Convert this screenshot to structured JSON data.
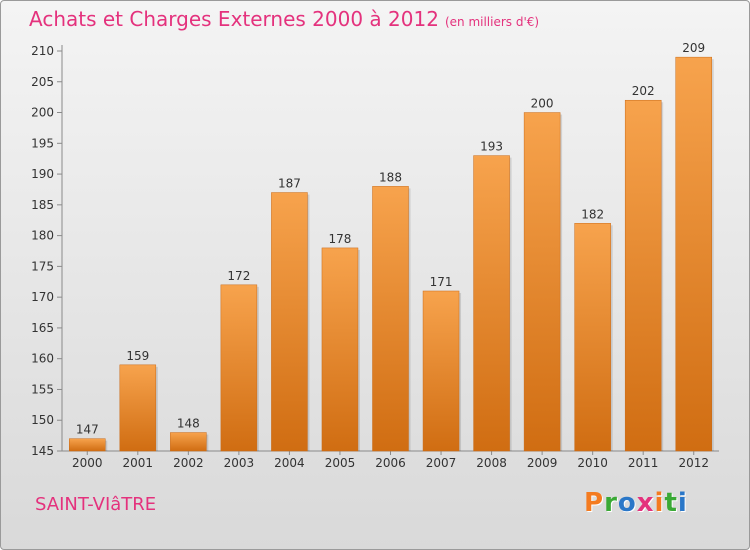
{
  "header": {
    "title": "Achats et Charges Externes 2000 à 2012",
    "unit": "(en milliers d'€)"
  },
  "footer": {
    "commune": "SAINT-VIâTRE",
    "logo_letters": [
      "P",
      "r",
      "o",
      "x",
      "i",
      "t",
      "i"
    ],
    "logo_colors": [
      "#f47b20",
      "#3aa935",
      "#2a77c8",
      "#e4327d",
      "#f47b20",
      "#3aa935",
      "#2a77c8"
    ]
  },
  "colors": {
    "bar_light": "#f7a34d",
    "bar_dark": "#d06d12",
    "title": "#e4327d"
  },
  "chart_data": {
    "type": "bar",
    "title": "Achats et Charges Externes 2000 à 2012",
    "subtitle": "(en milliers d'€)",
    "categories": [
      "2000",
      "2001",
      "2002",
      "2003",
      "2004",
      "2005",
      "2006",
      "2007",
      "2008",
      "2009",
      "2010",
      "2011",
      "2012"
    ],
    "values": [
      147,
      159,
      148,
      172,
      187,
      178,
      188,
      171,
      193,
      200,
      182,
      202,
      209
    ],
    "ylim": [
      145,
      210
    ],
    "yticks": [
      145,
      150,
      155,
      160,
      165,
      170,
      175,
      180,
      185,
      190,
      195,
      200,
      205,
      210
    ],
    "grid": false,
    "data_labels": true
  }
}
